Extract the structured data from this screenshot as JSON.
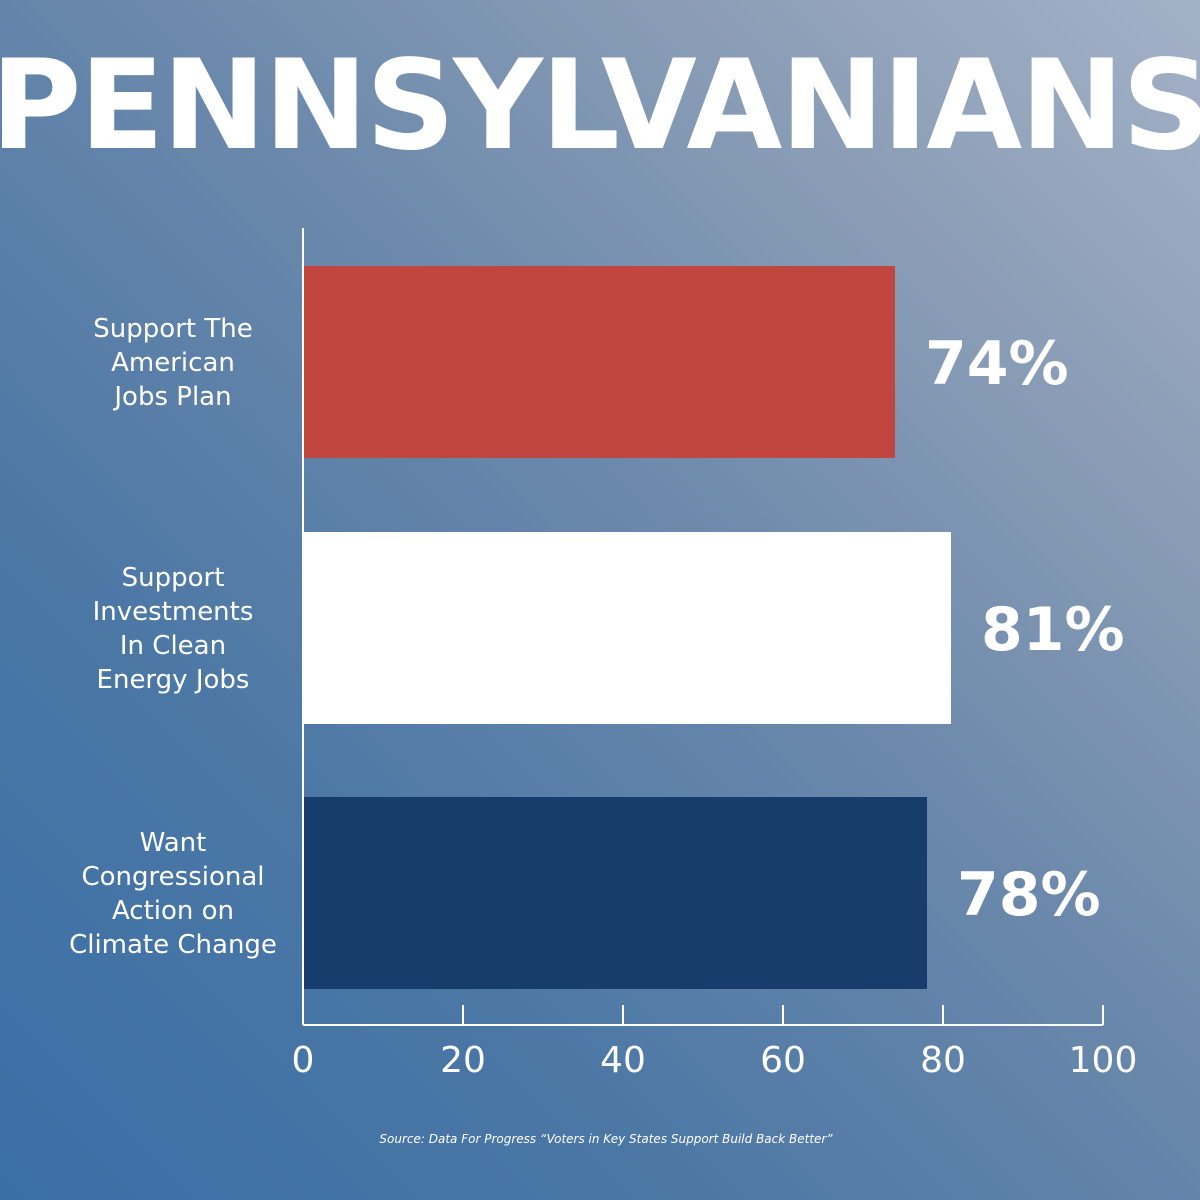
{
  "chart_data": {
    "type": "bar",
    "orientation": "horizontal",
    "title": "PENNSYLVANIANS",
    "categories": [
      [
        "Support The",
        "American",
        "Jobs Plan"
      ],
      [
        "Support",
        "Investments",
        "In Clean",
        "Energy Jobs"
      ],
      [
        "Want",
        "Congressional",
        "Action on",
        "Climate Change"
      ]
    ],
    "values": [
      74,
      81,
      78
    ],
    "value_labels": [
      "74%",
      "81%",
      "78%"
    ],
    "bar_colors": [
      "#c24640",
      "#ffffff",
      "#163d6c"
    ],
    "xlim": [
      0,
      100
    ],
    "xticks": [
      0,
      20,
      40,
      60,
      80,
      100
    ],
    "xtick_labels": [
      "0",
      "20",
      "40",
      "60",
      "80",
      "100"
    ],
    "xlabel": "",
    "ylabel": "",
    "grid": false,
    "source": "Source: Data For Progress “Voters in Key States Support Build Back Better”"
  }
}
